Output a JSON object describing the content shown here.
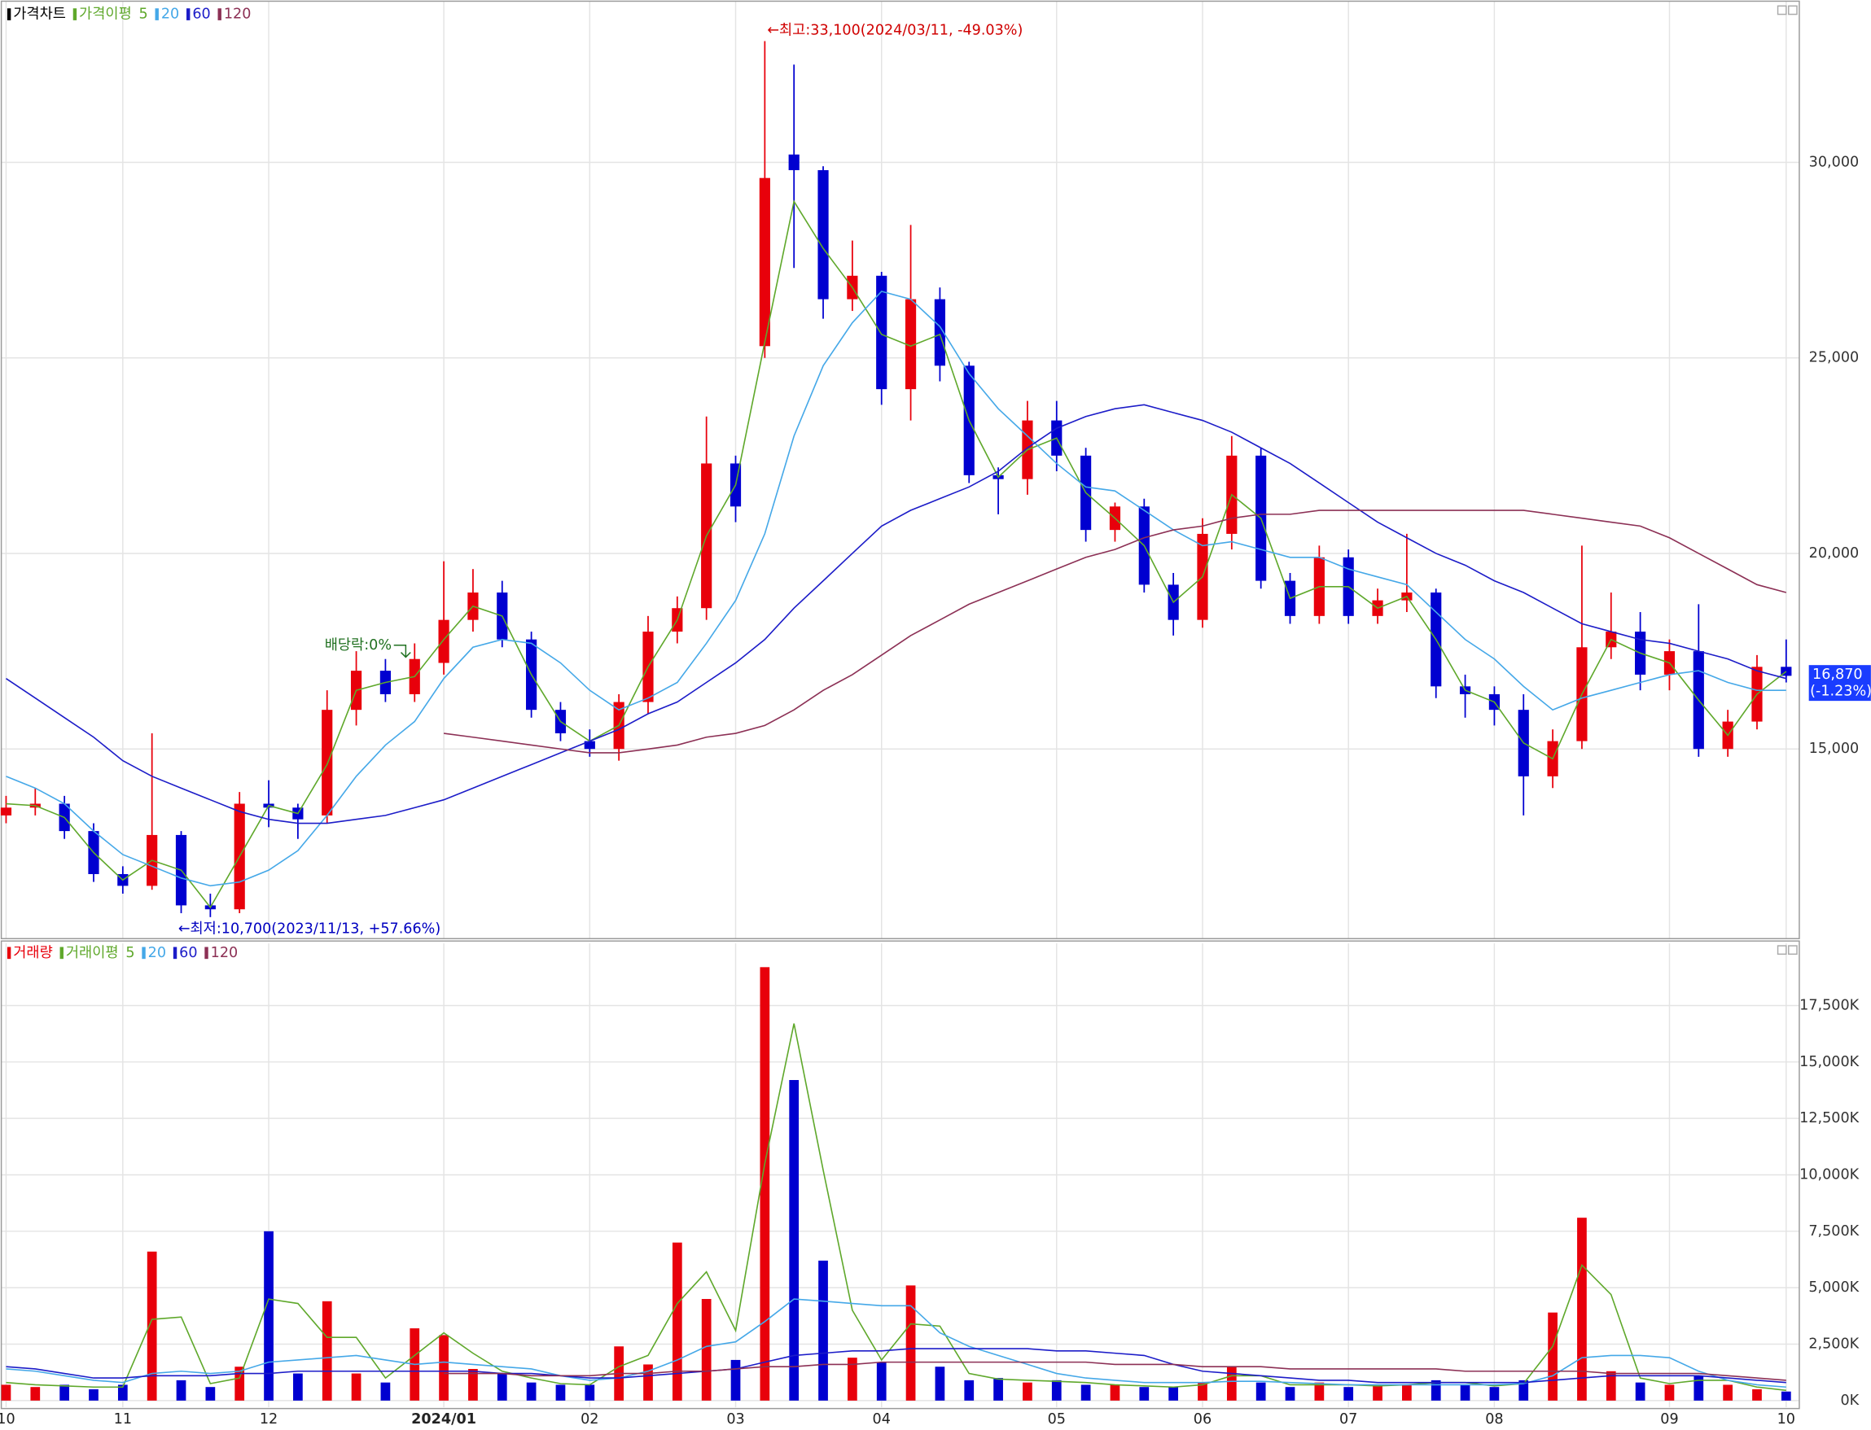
{
  "chart_data": [
    {
      "type": "candlestick",
      "title": "가격차트",
      "ma_title": "가격이평",
      "categories": [
        "10",
        null,
        null,
        null,
        "11",
        null,
        null,
        null,
        null,
        "12",
        null,
        null,
        null,
        null,
        null,
        "2024/01",
        null,
        null,
        null,
        null,
        "02",
        null,
        null,
        null,
        null,
        "03",
        null,
        null,
        null,
        null,
        "04",
        null,
        null,
        null,
        null,
        null,
        "05",
        null,
        null,
        null,
        null,
        "06",
        null,
        null,
        null,
        null,
        "07",
        null,
        null,
        null,
        null,
        "08",
        null,
        null,
        null,
        null,
        null,
        "09",
        null,
        null,
        null,
        "10"
      ],
      "open": [
        13300,
        13500,
        13600,
        12900,
        11800,
        11500,
        12800,
        11000,
        10900,
        13600,
        13500,
        13300,
        16000,
        17000,
        16400,
        17200,
        18300,
        19000,
        17800,
        16000,
        15200,
        15000,
        16200,
        18000,
        18600,
        22300,
        25300,
        30200,
        29800,
        26500,
        27100,
        24200,
        26500,
        24800,
        22000,
        21900,
        23400,
        22500,
        20600,
        21200,
        19200,
        18300,
        20500,
        22500,
        19300,
        18400,
        19900,
        18400,
        18800,
        19000,
        16600,
        16400,
        16000,
        14300,
        15200,
        17600,
        18000,
        16900,
        17500,
        15000,
        15700,
        17100
      ],
      "high": [
        13800,
        14000,
        13800,
        13100,
        12000,
        15400,
        12900,
        11300,
        13900,
        14200,
        13600,
        16500,
        17500,
        17300,
        17700,
        19800,
        19600,
        19300,
        18000,
        16200,
        15500,
        16400,
        18400,
        18900,
        23500,
        22500,
        33100,
        32500,
        29900,
        28000,
        27200,
        28400,
        26800,
        24900,
        22200,
        23900,
        23900,
        22700,
        21300,
        21400,
        19500,
        20900,
        23000,
        22700,
        19500,
        20200,
        20100,
        19100,
        20500,
        19100,
        16900,
        16600,
        16400,
        15500,
        20200,
        19000,
        18500,
        17800,
        18700,
        16000,
        17400,
        17800
      ],
      "low": [
        13100,
        13300,
        12700,
        11600,
        11300,
        11400,
        10800,
        10700,
        10800,
        13000,
        12700,
        13100,
        15600,
        16200,
        16200,
        16900,
        18000,
        17600,
        15800,
        15200,
        14800,
        14700,
        15900,
        17700,
        18300,
        20800,
        25000,
        27300,
        26000,
        26200,
        23800,
        23400,
        24400,
        21800,
        21000,
        21500,
        22100,
        20300,
        20300,
        19000,
        17900,
        18100,
        20100,
        19100,
        18200,
        18200,
        18200,
        18200,
        18500,
        16300,
        15800,
        15600,
        13300,
        14000,
        15000,
        17300,
        16500,
        16500,
        14800,
        14800,
        15500,
        16700
      ],
      "close": [
        13500,
        13600,
        12900,
        11800,
        11500,
        12800,
        11000,
        10900,
        13600,
        13500,
        13200,
        16000,
        17000,
        16400,
        17300,
        18300,
        19000,
        17800,
        16000,
        15400,
        15000,
        16200,
        18000,
        18600,
        22300,
        21200,
        29600,
        29800,
        26500,
        27100,
        24200,
        26500,
        24800,
        22000,
        21900,
        23400,
        22500,
        20600,
        21200,
        19200,
        18300,
        20500,
        22500,
        19300,
        18400,
        19900,
        18400,
        18800,
        19000,
        16600,
        16400,
        16000,
        14300,
        15200,
        17600,
        18000,
        16900,
        17500,
        15000,
        15700,
        17100,
        16870
      ],
      "up_color": "#e8000b",
      "down_color": "#0000d0",
      "series": [
        {
          "name": "5",
          "color": "#5fa82b",
          "values": [
            13600,
            13550,
            13250,
            12350,
            11650,
            12150,
            11900,
            10950,
            12250,
            13550,
            13350,
            14600,
            16500,
            16700,
            16850,
            17800,
            18650,
            18400,
            16900,
            15700,
            15200,
            15600,
            17100,
            18300,
            20450,
            21750,
            25400,
            29000,
            27800,
            26800,
            25600,
            25300,
            25600,
            23400,
            21950,
            22650,
            22950,
            21550,
            20900,
            20200,
            18750,
            19400,
            21500,
            20900,
            18850,
            19150,
            19150,
            18600,
            18900,
            17800,
            16500,
            16200,
            15150,
            14750,
            16400,
            17800,
            17450,
            17200,
            16250,
            15350,
            16400,
            16980
          ]
        },
        {
          "name": "20",
          "color": "#45a8e8",
          "values": [
            14300,
            14000,
            13600,
            12900,
            12300,
            12000,
            11700,
            11500,
            11600,
            11900,
            12400,
            13300,
            14300,
            15100,
            15700,
            16800,
            17600,
            17800,
            17700,
            17200,
            16500,
            16000,
            16300,
            16700,
            17700,
            18800,
            20500,
            23000,
            24800,
            25900,
            26700,
            26500,
            25800,
            24600,
            23700,
            23000,
            22300,
            21700,
            21600,
            21100,
            20600,
            20200,
            20300,
            20100,
            19900,
            19900,
            19600,
            19400,
            19200,
            18500,
            17800,
            17300,
            16600,
            16000,
            16300,
            16500,
            16700,
            16900,
            17000,
            16700,
            16500,
            16500
          ]
        },
        {
          "name": "60",
          "color": "#1c1cc8",
          "values": [
            16800,
            16300,
            15800,
            15300,
            14700,
            14300,
            14000,
            13700,
            13400,
            13200,
            13100,
            13100,
            13200,
            13300,
            13500,
            13700,
            14000,
            14300,
            14600,
            14900,
            15200,
            15500,
            15900,
            16200,
            16700,
            17200,
            17800,
            18600,
            19300,
            20000,
            20700,
            21100,
            21400,
            21700,
            22100,
            22700,
            23200,
            23500,
            23700,
            23800,
            23600,
            23400,
            23100,
            22700,
            22300,
            21800,
            21300,
            20800,
            20400,
            20000,
            19700,
            19300,
            19000,
            18600,
            18200,
            18000,
            17800,
            17700,
            17500,
            17300,
            17000,
            16800
          ]
        },
        {
          "name": "120",
          "color": "#8c3055",
          "values": [
            null,
            null,
            null,
            null,
            null,
            null,
            null,
            null,
            null,
            null,
            null,
            null,
            null,
            null,
            null,
            15400,
            15300,
            15200,
            15100,
            15000,
            14900,
            14900,
            15000,
            15100,
            15300,
            15400,
            15600,
            16000,
            16500,
            16900,
            17400,
            17900,
            18300,
            18700,
            19000,
            19300,
            19600,
            19900,
            20100,
            20400,
            20600,
            20700,
            20900,
            21000,
            21000,
            21100,
            21100,
            21100,
            21100,
            21100,
            21100,
            21100,
            21100,
            21000,
            20900,
            20800,
            20700,
            20400,
            20000,
            19600,
            19200,
            19000
          ]
        }
      ],
      "ylim": [
        10150,
        34090
      ],
      "yticks": [
        {
          "value": 15000,
          "label": "15,000"
        },
        {
          "value": 20000,
          "label": "20,000"
        },
        {
          "value": 25000,
          "label": "25,000"
        },
        {
          "value": 30000,
          "label": "30,000"
        }
      ],
      "grid": true,
      "annotations": {
        "high": "←최고:33,100(2024/03/11, -49.03%)",
        "low": "←최저:10,700(2023/11/13, +57.66%)",
        "dividend": "배당락:0%"
      },
      "last_price": "16,870",
      "last_change": "(-1.23%)"
    },
    {
      "type": "bar",
      "title": "거래량",
      "ma_title": "거래이평",
      "values": [
        700,
        600,
        700,
        500,
        700,
        6600,
        900,
        600,
        1500,
        7500,
        1200,
        4400,
        1200,
        800,
        3200,
        2900,
        1400,
        1200,
        800,
        700,
        700,
        2400,
        1600,
        7000,
        4500,
        1800,
        19200,
        14200,
        6200,
        1900,
        1700,
        5100,
        1500,
        900,
        1000,
        800,
        900,
        700,
        700,
        600,
        600,
        800,
        1500,
        800,
        600,
        800,
        600,
        700,
        700,
        900,
        700,
        600,
        900,
        3900,
        8100,
        1300,
        800,
        700,
        1100,
        700,
        500,
        400
      ],
      "series": [
        {
          "name": "5",
          "color": "#5fa82b",
          "values": [
            800,
            700,
            650,
            600,
            600,
            3600,
            3700,
            750,
            1000,
            4500,
            4300,
            2800,
            2800,
            1000,
            2000,
            3000,
            2100,
            1300,
            1000,
            750,
            700,
            1500,
            2000,
            4300,
            5700,
            3100,
            10500,
            16700,
            10200,
            4000,
            1800,
            3400,
            3300,
            1200,
            950,
            900,
            850,
            800,
            700,
            650,
            600,
            700,
            1100,
            1100,
            700,
            700,
            700,
            650,
            700,
            800,
            800,
            650,
            750,
            2400,
            6000,
            4700,
            1000,
            750,
            900,
            900,
            600,
            450
          ]
        },
        {
          "name": "20",
          "color": "#45a8e8",
          "values": [
            1400,
            1300,
            1100,
            900,
            800,
            1200,
            1300,
            1200,
            1300,
            1700,
            1800,
            1900,
            2000,
            1800,
            1600,
            1700,
            1600,
            1500,
            1400,
            1100,
            900,
            1000,
            1300,
            1800,
            2400,
            2600,
            3500,
            4500,
            4400,
            4300,
            4200,
            4200,
            3000,
            2400,
            2000,
            1600,
            1200,
            1000,
            900,
            800,
            800,
            800,
            850,
            850,
            800,
            750,
            700,
            700,
            700,
            700,
            700,
            700,
            750,
            1100,
            1900,
            2000,
            2000,
            1900,
            1300,
            900,
            700,
            600
          ]
        },
        {
          "name": "60",
          "color": "#1c1cc8",
          "values": [
            1500,
            1400,
            1200,
            1000,
            1000,
            1100,
            1100,
            1100,
            1200,
            1200,
            1300,
            1300,
            1300,
            1300,
            1300,
            1300,
            1300,
            1200,
            1200,
            1100,
            1000,
            1000,
            1100,
            1200,
            1300,
            1400,
            1700,
            2000,
            2100,
            2200,
            2200,
            2300,
            2300,
            2300,
            2300,
            2300,
            2200,
            2200,
            2100,
            2000,
            1600,
            1300,
            1200,
            1100,
            1000,
            900,
            900,
            800,
            800,
            800,
            800,
            800,
            800,
            900,
            1000,
            1100,
            1100,
            1100,
            1100,
            1000,
            900,
            800
          ]
        },
        {
          "name": "120",
          "color": "#8c3055",
          "values": [
            null,
            null,
            null,
            null,
            null,
            null,
            null,
            null,
            null,
            null,
            null,
            null,
            null,
            null,
            null,
            1200,
            1200,
            1200,
            1100,
            1100,
            1100,
            1200,
            1200,
            1300,
            1300,
            1400,
            1500,
            1500,
            1600,
            1600,
            1700,
            1700,
            1700,
            1700,
            1700,
            1700,
            1700,
            1700,
            1600,
            1600,
            1600,
            1500,
            1500,
            1500,
            1400,
            1400,
            1400,
            1400,
            1400,
            1400,
            1300,
            1300,
            1300,
            1300,
            1300,
            1200,
            1200,
            1200,
            1200,
            1100,
            1000,
            900
          ]
        }
      ],
      "ylim": [
        -300,
        20200
      ],
      "yticks": [
        {
          "value": 0,
          "label": "0K"
        },
        {
          "value": 2500,
          "label": "2,500K"
        },
        {
          "value": 5000,
          "label": "5,000K"
        },
        {
          "value": 7500,
          "label": "7,500K"
        },
        {
          "value": 10000,
          "label": "10,000K"
        },
        {
          "value": 12500,
          "label": "12,500K"
        },
        {
          "value": 15000,
          "label": "15,000K"
        },
        {
          "value": 17500,
          "label": "17,500K"
        }
      ],
      "grid": true
    }
  ]
}
